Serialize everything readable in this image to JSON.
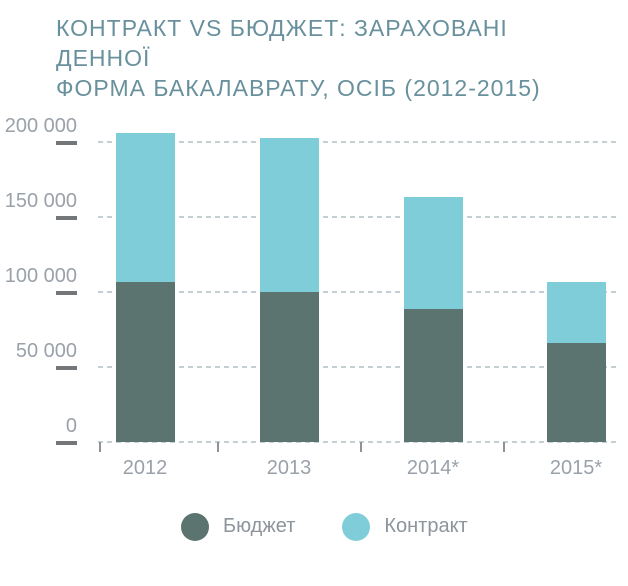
{
  "title": {
    "line1": "КОНТРАКТ VS БЮДЖЕТ: ЗАРАХОВАНІ ДЕННОЇ",
    "line2": "ФОРМА БАКАЛАВРАТУ, ОСІБ (2012-2015)"
  },
  "colors": {
    "budget": "#5b746f",
    "contract": "#7fcdd8",
    "title": "#68909d",
    "axis_label": "#9aa1a9",
    "tick_dash": "#73777a",
    "gridline": "#c5d0d3",
    "category_tick": "#8d9396",
    "legend_label": "#8d949b",
    "background": "#ffffff"
  },
  "y_axis": {
    "tick_labels": [
      "200 000",
      "150 000",
      "100 000",
      "50 000",
      "0"
    ],
    "tick_values": [
      200000,
      150000,
      100000,
      50000,
      0
    ]
  },
  "x_axis": {
    "categories": [
      "2012",
      "2013",
      "2014*",
      "2015*"
    ]
  },
  "legend": {
    "items": [
      {
        "label": "Бюджет",
        "color_key": "budget"
      },
      {
        "label": "Контракт",
        "color_key": "contract"
      }
    ]
  },
  "chart_data": {
    "type": "bar",
    "stacked": true,
    "title": "КОНТРАКТ VS БЮДЖЕТ: ЗАРАХОВАНІ ДЕННОЇ ФОРМА БАКАЛАВРАТУ, ОСІБ (2012-2015)",
    "categories": [
      "2012",
      "2013",
      "2014*",
      "2015*"
    ],
    "series": [
      {
        "name": "Бюджет",
        "color_key": "budget",
        "values": [
          106500,
          100000,
          88500,
          66000
        ]
      },
      {
        "name": "Контракт",
        "color_key": "contract",
        "values": [
          99500,
          102500,
          75000,
          40500
        ]
      }
    ],
    "totals": [
      206000,
      202500,
      163500,
      106500
    ],
    "ylim": [
      0,
      200000
    ],
    "ytick_step": 50000,
    "grid": "horizontal-dashed",
    "legend_position": "bottom"
  }
}
